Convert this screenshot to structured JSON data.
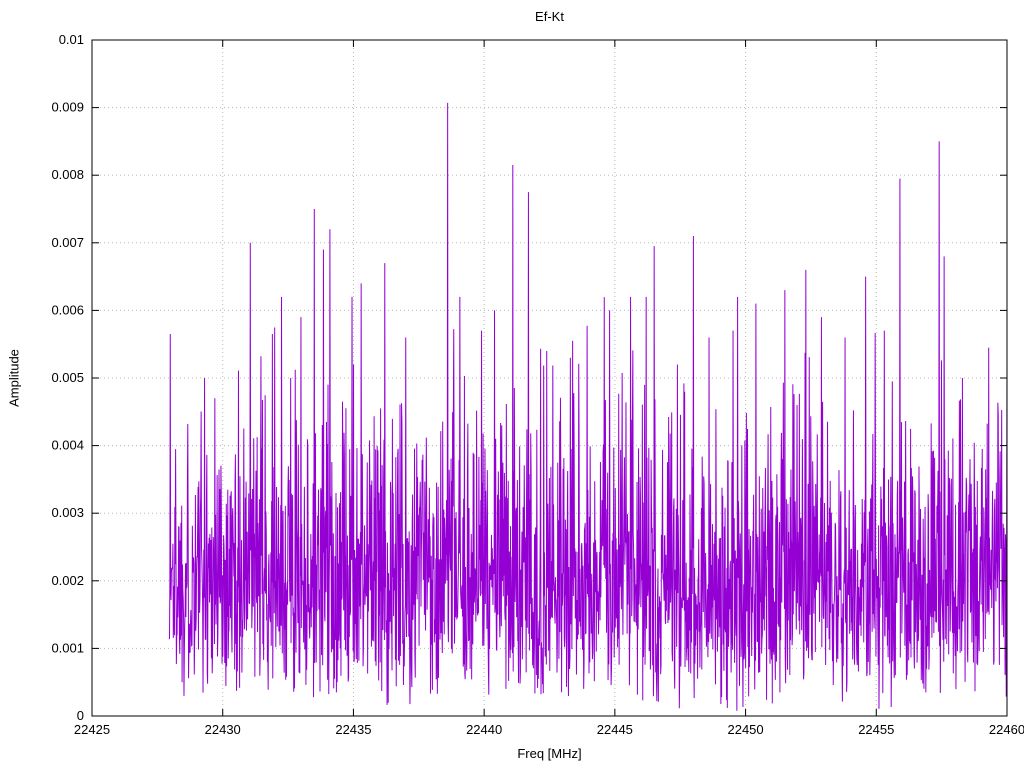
{
  "chart_data": {
    "type": "line",
    "style": "dense noisy amplitude spectrum drawn with connected lines",
    "title": "Ef-Kt",
    "xlabel": "Freq [MHz]",
    "ylabel": "Amplitude",
    "xlim": [
      22425,
      22460
    ],
    "ylim": [
      0,
      0.01
    ],
    "xticks": [
      22425,
      22430,
      22435,
      22440,
      22445,
      22450,
      22455,
      22460
    ],
    "xtick_labels": [
      "22425",
      "22430",
      "22435",
      "22440",
      "22445",
      "22450",
      "22455",
      "22460"
    ],
    "yticks": [
      0,
      0.001,
      0.002,
      0.003,
      0.004,
      0.005,
      0.006,
      0.007,
      0.008,
      0.009,
      0.01
    ],
    "ytick_labels": [
      "0",
      "0.001",
      "0.002",
      "0.003",
      "0.004",
      "0.005",
      "0.006",
      "0.007",
      "0.008",
      "0.009",
      "0.01"
    ],
    "grid": true,
    "legend": "none",
    "colors": {
      "line": "#9400d3",
      "grid": "#b8b8b8",
      "axis": "#000000",
      "text": "#000000"
    },
    "data_x_range": [
      22427.95,
      22460.0
    ],
    "noise": {
      "distribution": "rayleigh",
      "sigma": 0.0017,
      "floor": 5e-05,
      "cap": 0.0062,
      "points": 2200,
      "seed": 1337
    },
    "peaks": [
      [
        22428.0,
        0.00565
      ],
      [
        22429.3,
        0.005
      ],
      [
        22429.7,
        0.0047
      ],
      [
        22431.05,
        0.007
      ],
      [
        22431.9,
        0.00565
      ],
      [
        22432.6,
        0.005
      ],
      [
        22433.0,
        0.0059
      ],
      [
        22433.5,
        0.0075
      ],
      [
        22433.85,
        0.0069
      ],
      [
        22434.1,
        0.0072
      ],
      [
        22435.0,
        0.0052
      ],
      [
        22435.3,
        0.0064
      ],
      [
        22436.2,
        0.0067
      ],
      [
        22437.0,
        0.0056
      ],
      [
        22438.6,
        0.00907
      ],
      [
        22439.9,
        0.0057
      ],
      [
        22440.4,
        0.006
      ],
      [
        22441.1,
        0.00815
      ],
      [
        22441.7,
        0.00775
      ],
      [
        22442.4,
        0.0054
      ],
      [
        22443.3,
        0.0053
      ],
      [
        22444.8,
        0.006
      ],
      [
        22445.6,
        0.0062
      ],
      [
        22446.2,
        0.0062
      ],
      [
        22446.5,
        0.00695
      ],
      [
        22447.4,
        0.0052
      ],
      [
        22448.0,
        0.0071
      ],
      [
        22448.6,
        0.0056
      ],
      [
        22449.7,
        0.0062
      ],
      [
        22450.4,
        0.0061
      ],
      [
        22451.5,
        0.0063
      ],
      [
        22452.3,
        0.0066
      ],
      [
        22452.9,
        0.0059
      ],
      [
        22453.8,
        0.0056
      ],
      [
        22454.6,
        0.0065
      ],
      [
        22455.3,
        0.0057
      ],
      [
        22455.9,
        0.00795
      ],
      [
        22457.4,
        0.0085
      ],
      [
        22457.6,
        0.0068
      ],
      [
        22458.3,
        0.005
      ],
      [
        22459.3,
        0.00545
      ]
    ]
  }
}
